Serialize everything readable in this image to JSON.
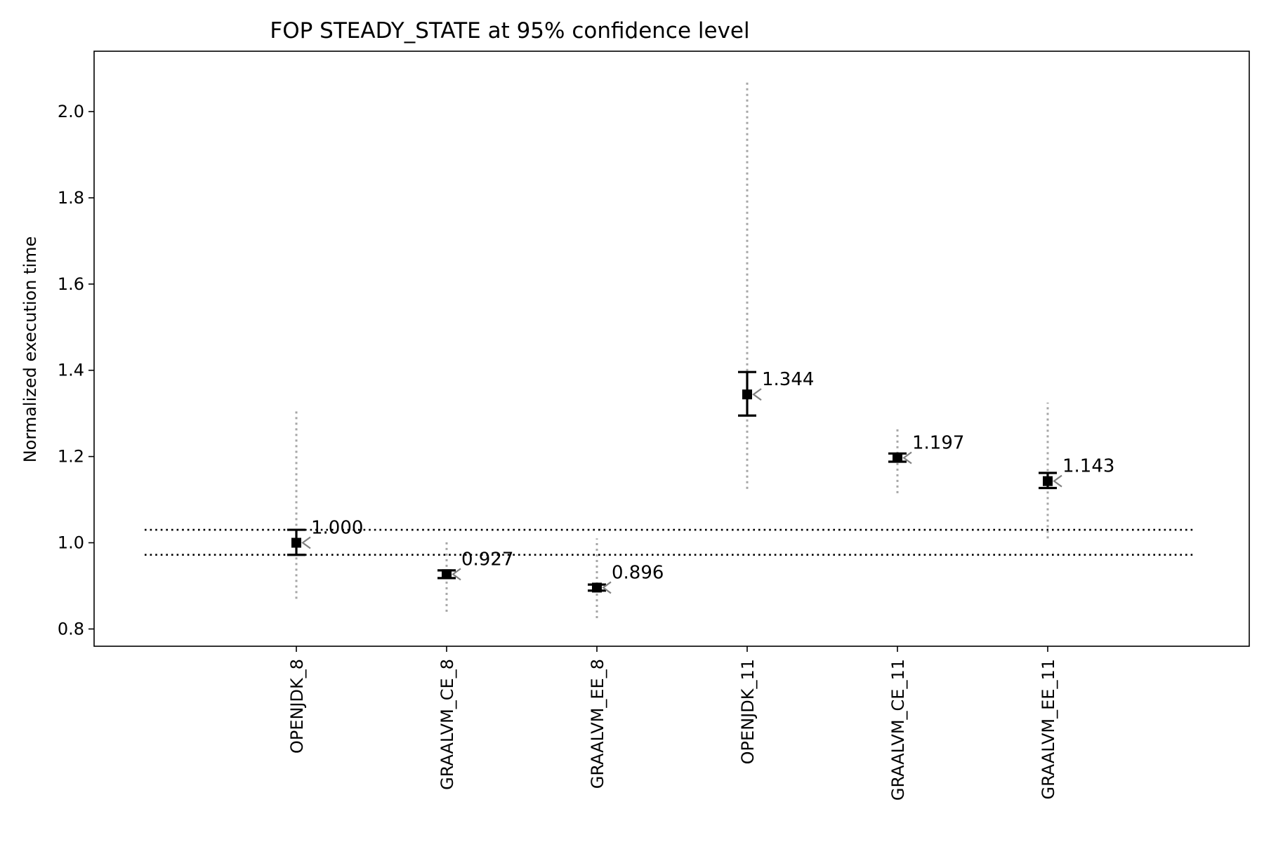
{
  "chart_data": {
    "type": "errorbar",
    "title": "FOP STEADY_STATE at 95% confidence level",
    "xlabel": "",
    "ylabel": "Normalized execution time",
    "categories": [
      "OPENJDK_8",
      "GRAALVM_CE_8",
      "GRAALVM_EE_8",
      "OPENJDK_11",
      "GRAALVM_CE_11",
      "GRAALVM_EE_11"
    ],
    "values": [
      1.0,
      0.927,
      0.896,
      1.344,
      1.197,
      1.143
    ],
    "value_labels": [
      "1.000",
      "0.927",
      "0.896",
      "1.344",
      "1.197",
      "1.143"
    ],
    "ci_low": [
      0.972,
      0.918,
      0.889,
      1.295,
      1.188,
      1.127
    ],
    "ci_high": [
      1.03,
      0.936,
      0.903,
      1.396,
      1.207,
      1.162
    ],
    "range_low": [
      0.87,
      0.84,
      0.825,
      1.125,
      1.115,
      1.01
    ],
    "range_high": [
      1.31,
      1.005,
      1.01,
      2.075,
      1.265,
      1.325
    ],
    "reference_lines": [
      1.03,
      0.972
    ],
    "ylim": [
      0.76,
      2.14
    ],
    "yticks": [
      0.8,
      1.0,
      1.2,
      1.4,
      1.6,
      1.8,
      2.0
    ],
    "ytick_labels": [
      "0.8",
      "1.0",
      "1.2",
      "1.4",
      "1.6",
      "1.8",
      "2.0"
    ],
    "grid": false,
    "colors": {
      "point": "#000000",
      "ci": "#000000",
      "range": "#a6a6a6",
      "reference": "#000000",
      "arrow": "#808080"
    }
  }
}
